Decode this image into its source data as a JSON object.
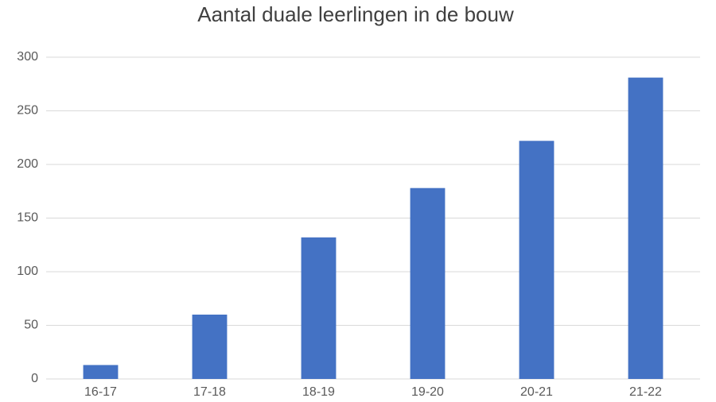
{
  "chart_data": {
    "type": "bar",
    "title": "Aantal duale leerlingen in de bouw",
    "categories": [
      "16-17",
      "17-18",
      "18-19",
      "19-20",
      "20-21",
      "21-22"
    ],
    "values": [
      13,
      60,
      132,
      178,
      222,
      281
    ],
    "color": "#4472c4",
    "ylim": [
      0,
      300
    ],
    "yticks": [
      0,
      50,
      100,
      150,
      200,
      250,
      300
    ],
    "grid": true
  }
}
